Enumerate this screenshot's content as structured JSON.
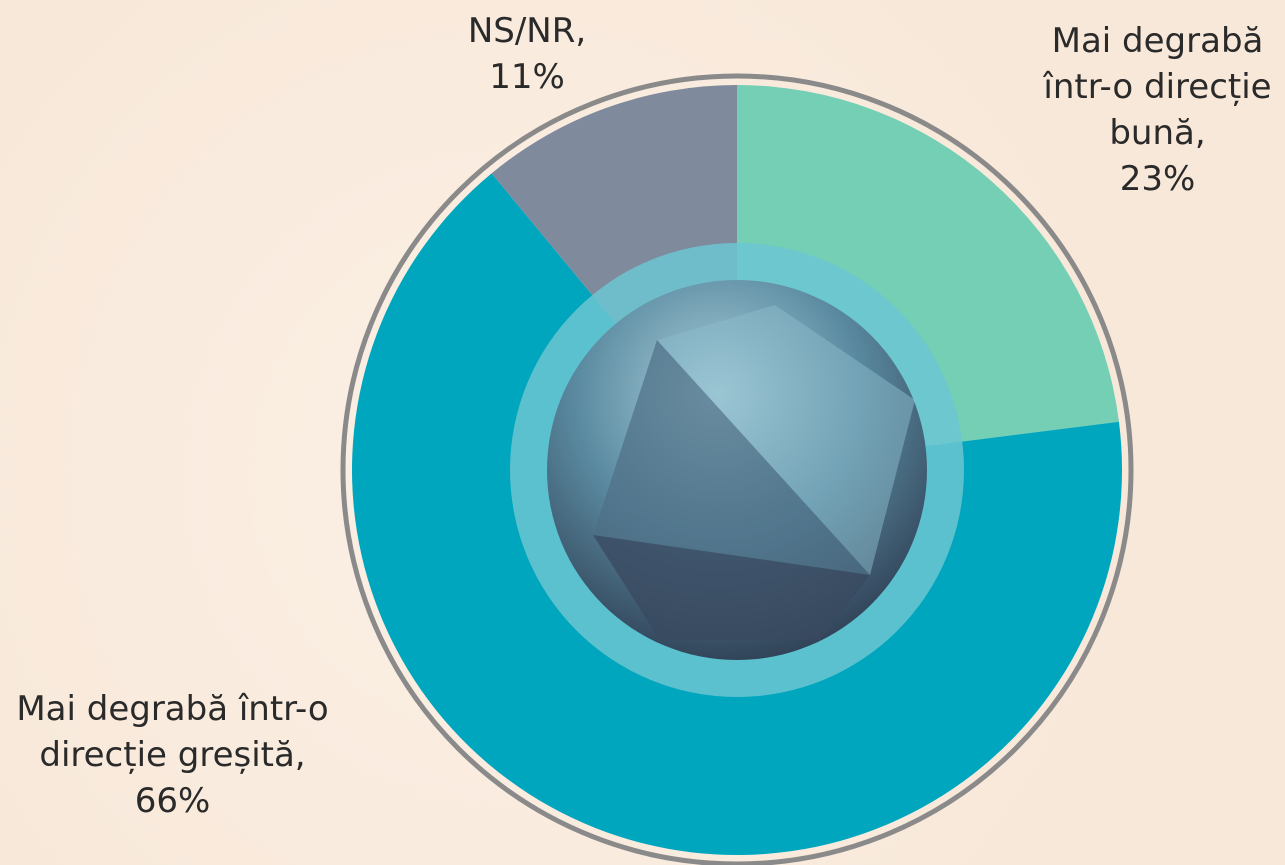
{
  "chart_data": {
    "type": "pie",
    "categories": [
      "Mai degrabă într-o direcție bună,",
      "Mai degrabă într-o direcție greșită,",
      "NS/NR,"
    ],
    "values": [
      23,
      66,
      11
    ],
    "value_labels": [
      "23%",
      "66%",
      "11%"
    ],
    "colors": [
      "#74cfb5",
      "#00a6bd",
      "#7f8a9c"
    ]
  }
}
